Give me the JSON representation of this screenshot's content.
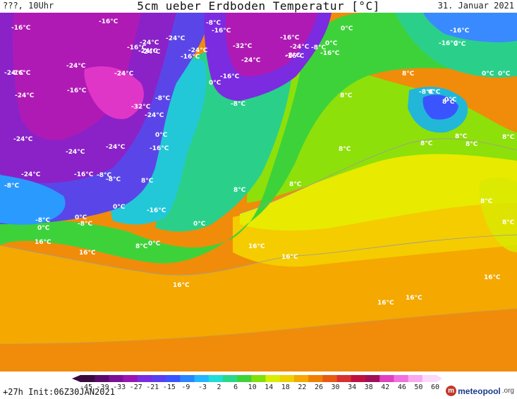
{
  "header": {
    "left_text": "???, 10Uhr",
    "title": "5cm ueber Erdboden Temperatur [°C]",
    "date": "31. Januar 2021"
  },
  "footer": {
    "lead_time": "+27h",
    "init": "Init:06Z30JAN2021",
    "logo_name": "meteopool",
    "logo_tld": ".org",
    "logo_mark": "m"
  },
  "colorbar": {
    "ticks": [
      "-45",
      "-39",
      "-33",
      "-27",
      "-21",
      "-15",
      "-9",
      "-3",
      "2",
      "6",
      "10",
      "14",
      "18",
      "22",
      "26",
      "30",
      "34",
      "38",
      "42",
      "46",
      "50",
      "60"
    ],
    "colors": [
      "#3a0a3f",
      "#5a0b6a",
      "#7a1094",
      "#9a14b4",
      "#7b2be0",
      "#5b3ef0",
      "#3a55ff",
      "#2a86ff",
      "#22b7ff",
      "#20dcd8",
      "#28d88a",
      "#3ed23a",
      "#80e00a",
      "#d8ee00",
      "#f0d000",
      "#f4a800",
      "#f08000",
      "#e85a10",
      "#d83030",
      "#c01040",
      "#a0105a",
      "#e040c0",
      "#f070e0",
      "#f8a8f0",
      "#fcd8fa"
    ]
  },
  "labels": [
    {
      "text": "-16°C"
    },
    {
      "text": "-16°C"
    },
    {
      "text": "-8°C"
    },
    {
      "text": "-16°C"
    },
    {
      "text": "-24°C"
    },
    {
      "text": "-24°C"
    },
    {
      "text": "-24°C"
    },
    {
      "text": "-24°C"
    },
    {
      "text": "-16°C"
    },
    {
      "text": "-24°C"
    },
    {
      "text": "-32°C"
    },
    {
      "text": "-16°C"
    },
    {
      "text": "-24°C"
    },
    {
      "text": "-24°C"
    },
    {
      "text": "-16°C"
    },
    {
      "text": "-16°C"
    },
    {
      "text": "0°C"
    },
    {
      "text": "-8°C"
    },
    {
      "text": "-16°C"
    },
    {
      "text": "0°C"
    },
    {
      "text": "-8°C"
    },
    {
      "text": "-16°C"
    },
    {
      "text": "0°C"
    },
    {
      "text": "-16°C"
    },
    {
      "text": "-24°C"
    },
    {
      "text": "-24°C"
    },
    {
      "text": "-24°C"
    },
    {
      "text": "-16°C"
    },
    {
      "text": "-24°C"
    },
    {
      "text": "-32°C"
    },
    {
      "text": "-8°C"
    },
    {
      "text": "-24°C"
    },
    {
      "text": "0°C"
    },
    {
      "text": "-16°C"
    },
    {
      "text": "0°C"
    },
    {
      "text": "-8°C"
    },
    {
      "text": "8°C"
    },
    {
      "text": "8°C"
    },
    {
      "text": "0°C"
    },
    {
      "text": "8°C"
    },
    {
      "text": "0°C"
    },
    {
      "text": "0°C"
    },
    {
      "text": "-24°C"
    },
    {
      "text": "-24°C"
    },
    {
      "text": "-24°C"
    },
    {
      "text": "-24°C"
    },
    {
      "text": "-16°C"
    },
    {
      "text": "-8°C"
    },
    {
      "text": "-8°C"
    },
    {
      "text": "-8°C"
    },
    {
      "text": "0°C"
    },
    {
      "text": "0°C"
    },
    {
      "text": "-8°C"
    },
    {
      "text": "0°C"
    },
    {
      "text": "-16°C"
    },
    {
      "text": "8°C"
    },
    {
      "text": "8°C"
    },
    {
      "text": "8°C"
    },
    {
      "text": "8°C"
    },
    {
      "text": "8°C"
    },
    {
      "text": "8°C"
    },
    {
      "text": "8°C"
    },
    {
      "text": "8°C"
    },
    {
      "text": "8°C"
    },
    {
      "text": "8°C"
    },
    {
      "text": "8°C"
    },
    {
      "text": "16°C"
    },
    {
      "text": "16°C"
    },
    {
      "text": "16°C"
    },
    {
      "text": "16°C"
    },
    {
      "text": "16°C"
    },
    {
      "text": "16°C"
    },
    {
      "text": "16°C"
    },
    {
      "text": "16°C"
    },
    {
      "text": "0°C"
    },
    {
      "text": "0°C"
    },
    {
      "text": "-8°C"
    },
    {
      "text": "0°C"
    },
    {
      "text": "-16°C"
    },
    {
      "text": "-8°C"
    },
    {
      "text": "-16°C"
    }
  ]
}
